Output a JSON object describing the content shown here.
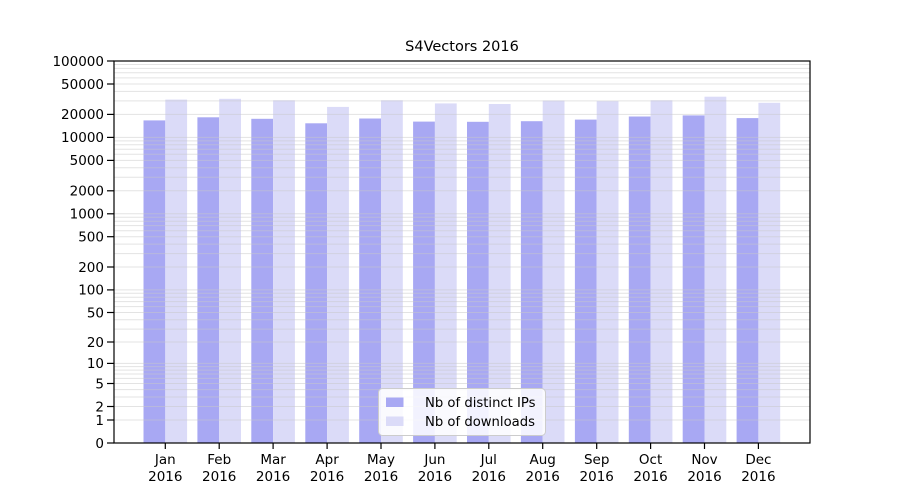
{
  "figure": {
    "background": "#ffffff",
    "title": "S4Vectors 2016"
  },
  "chart_data": {
    "type": "bar",
    "title": "S4Vectors 2016",
    "categories": [
      "Jan 2016",
      "Feb 2016",
      "Mar 2016",
      "Apr 2016",
      "May 2016",
      "Jun 2016",
      "Jul 2016",
      "Aug 2016",
      "Sep 2016",
      "Oct 2016",
      "Nov 2016",
      "Dec 2016"
    ],
    "series": [
      {
        "name": "Nb of distinct IPs",
        "color": "#a8a8f3",
        "values": [
          16700,
          18300,
          17500,
          15300,
          17700,
          16100,
          16000,
          16300,
          17100,
          18800,
          19400,
          17900
        ]
      },
      {
        "name": "Nb of downloads",
        "color": "#dbdbf8",
        "values": [
          31200,
          32000,
          30600,
          25100,
          30600,
          27900,
          27400,
          30300,
          29900,
          30600,
          34100,
          28400
        ]
      }
    ],
    "y_axis": {
      "scale": "log10(value+1)",
      "min": 0,
      "max": 100000,
      "ticks": [
        100000,
        50000,
        20000,
        10000,
        5000,
        2000,
        1000,
        500,
        200,
        100,
        50,
        20,
        10,
        5,
        2,
        1,
        0
      ]
    },
    "x_axis": {
      "tick_label_years": "2016"
    },
    "grid": {
      "horizontal": true,
      "minor_log_mantissas": [
        1,
        2,
        3,
        4,
        5,
        6,
        7,
        8,
        9
      ],
      "color": "#c8c8c8"
    },
    "legend": {
      "position": "inside-bottom-center",
      "entries": [
        "Nb of distinct IPs",
        "Nb of downloads"
      ]
    }
  }
}
